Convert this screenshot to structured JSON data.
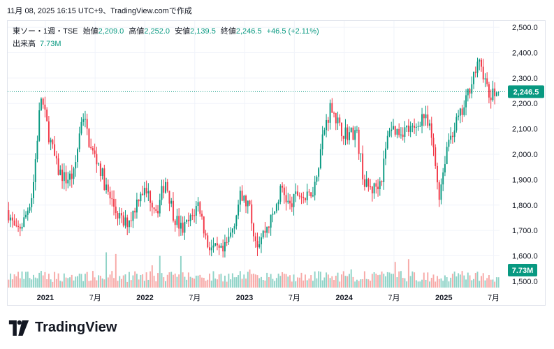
{
  "caption": "11月 08, 2025 16:15 UTC+9、TradingView.comで作成",
  "legend": {
    "symbol": "東ソー・1週・TSE",
    "open_label": "始値",
    "open": "2,209.0",
    "high_label": "高値",
    "high": "2,252.0",
    "low_label": "安値",
    "low": "2,139.5",
    "close_label": "終値",
    "close": "2,246.5",
    "change": "+46.5 (+2.11%)",
    "volume_label": "出来高",
    "volume": "7.73M"
  },
  "brand": {
    "name": "TradingView",
    "logo_icon": "tradingview-logo-icon"
  },
  "colors": {
    "up": "#089981",
    "down": "#f23645",
    "vol_up": "#8fd3c7",
    "vol_down": "#f7a9a7",
    "price_line": "#089981",
    "grid": "#f0f3fa",
    "text": "#131722"
  },
  "chart_data": {
    "type": "candlestick",
    "interval": "1 week",
    "ylim": [
      1475,
      2525
    ],
    "y_ticks": [
      "1,500.0",
      "1,600.0",
      "1,700.0",
      "1,800.0",
      "1,900.0",
      "2,000.0",
      "2,100.0",
      "2,200.0",
      "2,300.0",
      "2,400.0",
      "2,500.0"
    ],
    "x_ticks": [
      "2021",
      "7月",
      "2022",
      "7月",
      "2023",
      "7月",
      "2024",
      "7月",
      "2025",
      "7月"
    ],
    "current_price": "2,246.5",
    "current_volume": "7.73M",
    "close_path": [
      [
        "2020-12",
        1780
      ],
      [
        "2021-01",
        1690
      ],
      [
        "2021-02",
        1740
      ],
      [
        "2021-03",
        1850
      ],
      [
        "2021-04",
        2230
      ],
      [
        "2021-05",
        2070
      ],
      [
        "2021-06",
        1940
      ],
      [
        "2021-07",
        1900
      ],
      [
        "2021-08",
        1920
      ],
      [
        "2021-09",
        2170
      ],
      [
        "2021-10",
        2020
      ],
      [
        "2021-11",
        1960
      ],
      [
        "2021-12",
        1850
      ],
      [
        "2022-01",
        1780
      ],
      [
        "2022-02",
        1720
      ],
      [
        "2022-03",
        1760
      ],
      [
        "2022-04",
        1860
      ],
      [
        "2022-05",
        1840
      ],
      [
        "2022-06",
        1780
      ],
      [
        "2022-07",
        1900
      ],
      [
        "2022-08",
        1760
      ],
      [
        "2022-09",
        1700
      ],
      [
        "2022-10",
        1740
      ],
      [
        "2022-11",
        1810
      ],
      [
        "2022-12",
        1650
      ],
      [
        "2023-01",
        1620
      ],
      [
        "2023-02",
        1610
      ],
      [
        "2023-03",
        1700
      ],
      [
        "2023-04",
        1830
      ],
      [
        "2023-05",
        1800
      ],
      [
        "2023-06",
        1650
      ],
      [
        "2023-07",
        1700
      ],
      [
        "2023-08",
        1760
      ],
      [
        "2023-09",
        1870
      ],
      [
        "2023-10",
        1790
      ],
      [
        "2023-11",
        1850
      ],
      [
        "2023-12",
        1820
      ],
      [
        "2024-01",
        1880
      ],
      [
        "2024-02",
        2080
      ],
      [
        "2024-03",
        2200
      ],
      [
        "2024-04",
        2100
      ],
      [
        "2024-05",
        2080
      ],
      [
        "2024-06",
        2090
      ],
      [
        "2024-07",
        1880
      ],
      [
        "2024-08",
        1860
      ],
      [
        "2024-09",
        1900
      ],
      [
        "2024-10",
        2110
      ],
      [
        "2024-11",
        2090
      ],
      [
        "2024-12",
        2100
      ],
      [
        "2025-01",
        2090
      ],
      [
        "2025-02",
        2160
      ],
      [
        "2025-03",
        2080
      ],
      [
        "2025-04",
        1840
      ],
      [
        "2025-05",
        2050
      ],
      [
        "2025-06",
        2120
      ],
      [
        "2025-07",
        2180
      ],
      [
        "2025-08",
        2310
      ],
      [
        "2025-09",
        2360
      ],
      [
        "2025-10",
        2220
      ],
      [
        "2025-11",
        2246.5
      ]
    ],
    "volume_range_m": [
      1,
      14
    ]
  }
}
